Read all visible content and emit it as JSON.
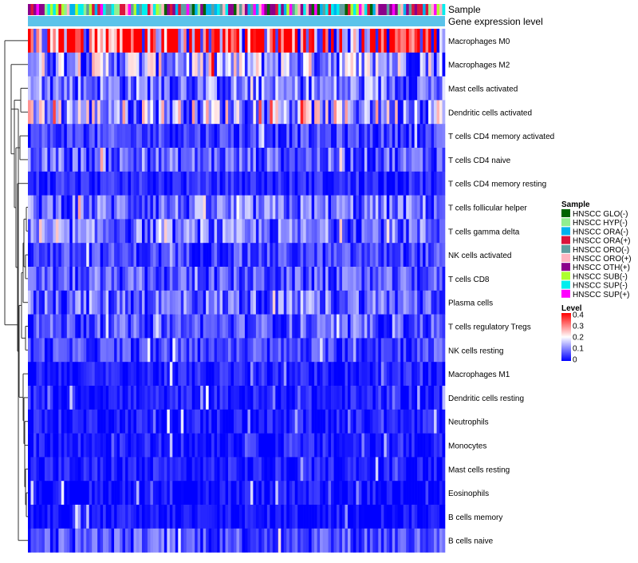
{
  "chart_data": {
    "type": "heatmap",
    "title": "",
    "annotation_tracks": [
      "Sample",
      "Gene expression level"
    ],
    "rows": [
      "Macrophages M0",
      "Macrophages M2",
      "Mast cells activated",
      "Dendritic cells activated",
      "T cells CD4 memory activated",
      "T cells CD4 naive",
      "T cells CD4 memory resting",
      "T cells follicular helper",
      "T cells gamma delta",
      "NK cells activated",
      "T cells CD8",
      "Plasma cells",
      "T cells regulatory  Tregs",
      "NK cells resting",
      "Macrophages M1",
      "Dendritic cells resting",
      "Neutrophils",
      "Monocytes",
      "Mast cells resting",
      "Eosinophils",
      "B cells memory",
      "B cells naive"
    ],
    "row_mean_level": [
      0.32,
      0.13,
      0.09,
      0.14,
      0.05,
      0.07,
      0.03,
      0.08,
      0.08,
      0.05,
      0.06,
      0.08,
      0.06,
      0.05,
      0.02,
      0.02,
      0.02,
      0.02,
      0.02,
      0.01,
      0.01,
      0.06
    ],
    "sample_legend": {
      "title": "Sample",
      "items": [
        {
          "label": "HNSCC GLO(-)",
          "color": "#006400"
        },
        {
          "label": "HNSCC HYP(-)",
          "color": "#90ee90"
        },
        {
          "label": "HNSCC ORA(-)",
          "color": "#00b2ee"
        },
        {
          "label": "HNSCC ORA(+)",
          "color": "#dc143c"
        },
        {
          "label": "HNSCC ORO(-)",
          "color": "#5f9ea0"
        },
        {
          "label": "HNSCC ORO(+)",
          "color": "#ffb6c1"
        },
        {
          "label": "HNSCC OTH(+)",
          "color": "#8b008b"
        },
        {
          "label": "HNSCC SUB(-)",
          "color": "#adff2f"
        },
        {
          "label": "HNSCC SUP(-)",
          "color": "#00eeee"
        },
        {
          "label": "HNSCC SUP(+)",
          "color": "#ff00ff"
        }
      ]
    },
    "level_legend": {
      "title": "Level",
      "ticks": [
        "0.4",
        "0.3",
        "0.2",
        "0.1",
        "0"
      ],
      "range": [
        0,
        0.4
      ],
      "colors": [
        "#0000ff",
        "#ffffff",
        "#ff0000"
      ]
    },
    "gene_expression_color": "#5bc3ea"
  }
}
